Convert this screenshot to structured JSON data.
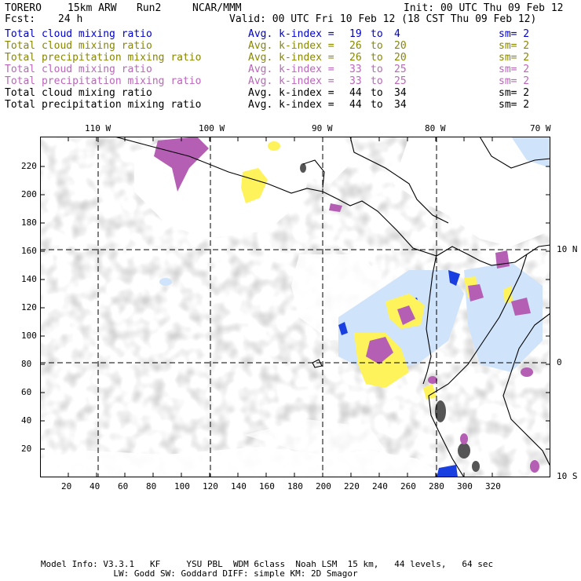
{
  "header": {
    "model": "TORERO",
    "resolution": "15km ARW",
    "run": "Run2",
    "org": "NCAR/MMM",
    "init": "Init: 00 UTC Thu 09 Feb 12",
    "fcst_label": "Fcst:",
    "fcst_value": "24 h",
    "valid": "Valid: 00 UTC Fri 10 Feb 12 (18 CST Thu 09 Feb 12)"
  },
  "legend": [
    {
      "label": "Total cloud mixing ratio",
      "stat": "Avg. k-index =",
      "v1": "19",
      "to": "to",
      "v2": "4",
      "sm": "sm= 2",
      "color": "#0000cc"
    },
    {
      "label": "Total cloud mixing ratio",
      "stat": "Avg. k-index =",
      "v1": "26",
      "to": "to",
      "v2": "20",
      "sm": "sm= 2",
      "color": "#888800"
    },
    {
      "label": "Total precipitation mixing ratio",
      "stat": "Avg. k-index =",
      "v1": "26",
      "to": "to",
      "v2": "20",
      "sm": "sm= 2",
      "color": "#888800"
    },
    {
      "label": "Total cloud mixing ratio",
      "stat": "Avg. k-index =",
      "v1": "33",
      "to": "to",
      "v2": "25",
      "sm": "sm= 2",
      "color": "#bb66bb"
    },
    {
      "label": "Total precipitation mixing ratio",
      "stat": "Avg. k-index =",
      "v1": "33",
      "to": "to",
      "v2": "25",
      "sm": "sm= 2",
      "color": "#bb66bb"
    },
    {
      "label": "Total cloud mixing ratio",
      "stat": "Avg. k-index =",
      "v1": "44",
      "to": "to",
      "v2": "34",
      "sm": "sm= 2",
      "color": "#000000"
    },
    {
      "label": "Total precipitation mixing ratio",
      "stat": "Avg. k-index =",
      "v1": "44",
      "to": "to",
      "v2": "34",
      "sm": "sm= 2",
      "color": "#000000"
    }
  ],
  "axes": {
    "lon_labels": [
      "110 W",
      "100 W",
      "90 W",
      "80 W",
      "70 W"
    ],
    "lat_labels": [
      "10 N",
      "0",
      "10 S"
    ],
    "x_ticks": [
      "20",
      "40",
      "60",
      "80",
      "100",
      "120",
      "140",
      "160",
      "180",
      "200",
      "220",
      "240",
      "260",
      "280",
      "300",
      "320"
    ],
    "y_ticks": [
      "220",
      "200",
      "180",
      "160",
      "140",
      "120",
      "100",
      "80",
      "60",
      "40",
      "20"
    ]
  },
  "footer": {
    "line1": "Model Info: V3.3.1   KF     YSU PBL  WDM 6class  Noah LSM  15 km,   44 levels,   64 sec",
    "line2": "LW: Godd SW: Goddard DIFF: simple KM: 2D Smagor"
  },
  "colors": {
    "cloud_gray": "#a9a9a9",
    "cloud_dark": "#555555",
    "light_blue": "#cfe3fb",
    "blue": "#1a3fe0",
    "yellow": "#fff35c",
    "purple": "#b45fb4",
    "coast": "#000000"
  }
}
